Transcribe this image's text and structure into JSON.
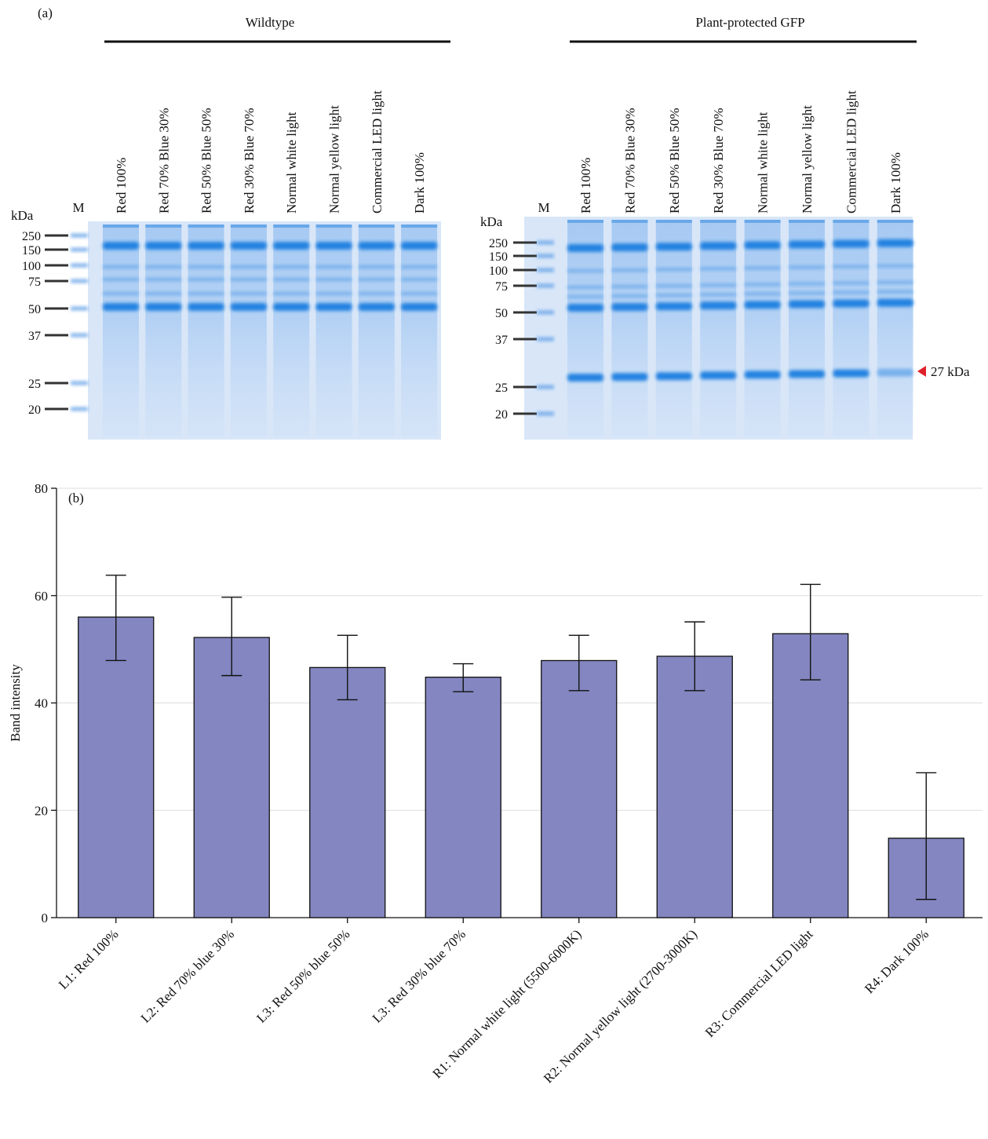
{
  "panel_a": {
    "label": "(a)",
    "kda_label": "kDa",
    "marker_lane_label": "M",
    "side_annotation": "27 kDa",
    "gels": [
      {
        "group_title": "Wildtype",
        "marker_ticks": [
          "250",
          "150",
          "100",
          "75",
          "50",
          "37",
          "25",
          "20"
        ],
        "lanes": [
          "Red 100%",
          "Red 70% Blue 30%",
          "Red 50% Blue 50%",
          "Red 30% Blue 70%",
          "Normal white light",
          "Normal yellow light",
          "Commercial LED light",
          "Dark 100%"
        ]
      },
      {
        "group_title": "Plant-protected GFP",
        "marker_ticks": [
          "250",
          "150",
          "100",
          "75",
          "50",
          "37",
          "25",
          "20"
        ],
        "lanes": [
          "Red 100%",
          "Red 70% Blue 30%",
          "Red 50% Blue 50%",
          "Red 30% Blue 70%",
          "Normal white light",
          "Normal yellow light",
          "Commercial LED light",
          "Dark 100%"
        ]
      }
    ],
    "colors": {
      "gel_bg": "#d8e6f8",
      "band": "#1e7fe0",
      "marker_line": "#333333",
      "arrow": "#e0202a"
    }
  },
  "chart_data": {
    "type": "bar",
    "panel_label": "(b)",
    "title": "",
    "xlabel": "",
    "ylabel": "Band intensity",
    "ylim": [
      0,
      80
    ],
    "yticks": [
      "0",
      "20",
      "40",
      "60",
      "80"
    ],
    "grid": true,
    "categories": [
      "L1: Red 100%",
      "L2: Red 70% blue 30%",
      "L3: Red 50% blue 50%",
      "L3: Red 30% blue 70%",
      "R1: Normal white light (5500-6000K)",
      "R2: Normal yellow light (2700-3000K)",
      "R3: Commercial LED light",
      "R4: Dark 100%"
    ],
    "values": [
      56,
      52.2,
      46.6,
      44.8,
      47.9,
      48.7,
      52.9,
      14.8
    ],
    "error_low": [
      47.9,
      45.1,
      40.6,
      42.1,
      42.3,
      42.3,
      44.3,
      3.4
    ],
    "error_high": [
      63.8,
      59.7,
      52.6,
      47.3,
      52.6,
      55.1,
      62.1,
      27
    ],
    "bar_color": "#8386c0"
  }
}
